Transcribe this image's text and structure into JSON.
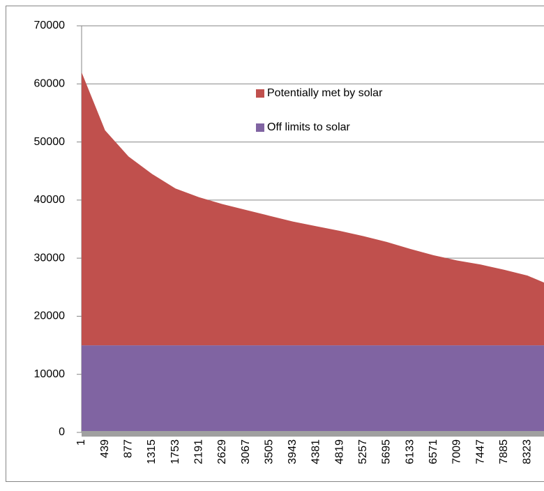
{
  "chart_data": {
    "type": "area",
    "x": [
      1,
      439,
      877,
      1315,
      1753,
      2191,
      2629,
      3067,
      3505,
      3943,
      4381,
      4819,
      5257,
      5695,
      6133,
      6571,
      7009,
      7447,
      7885,
      8323,
      8631
    ],
    "xlim": [
      1,
      8631
    ],
    "xticks": [
      1,
      439,
      877,
      1315,
      1753,
      2191,
      2629,
      3067,
      3505,
      3943,
      4381,
      4819,
      5257,
      5695,
      6133,
      6571,
      7009,
      7447,
      7885,
      8323
    ],
    "ylim": [
      0,
      70000
    ],
    "yticks": [
      0,
      10000,
      20000,
      30000,
      40000,
      50000,
      60000,
      70000
    ],
    "grid": true,
    "stacked": true,
    "series": [
      {
        "name": "Off limits to solar",
        "color": "#8064a2",
        "values": [
          15000,
          15000,
          15000,
          15000,
          15000,
          15000,
          15000,
          15000,
          15000,
          15000,
          15000,
          15000,
          15000,
          15000,
          15000,
          15000,
          15000,
          15000,
          15000,
          15000,
          15000
        ]
      },
      {
        "name": "Potentially met by solar",
        "color": "#c0504d",
        "values": [
          47000,
          37000,
          32500,
          29500,
          27000,
          25500,
          24300,
          23300,
          22300,
          21300,
          20500,
          19700,
          18800,
          17800,
          16600,
          15500,
          14600,
          13900,
          13000,
          12000,
          10800
        ]
      }
    ]
  }
}
